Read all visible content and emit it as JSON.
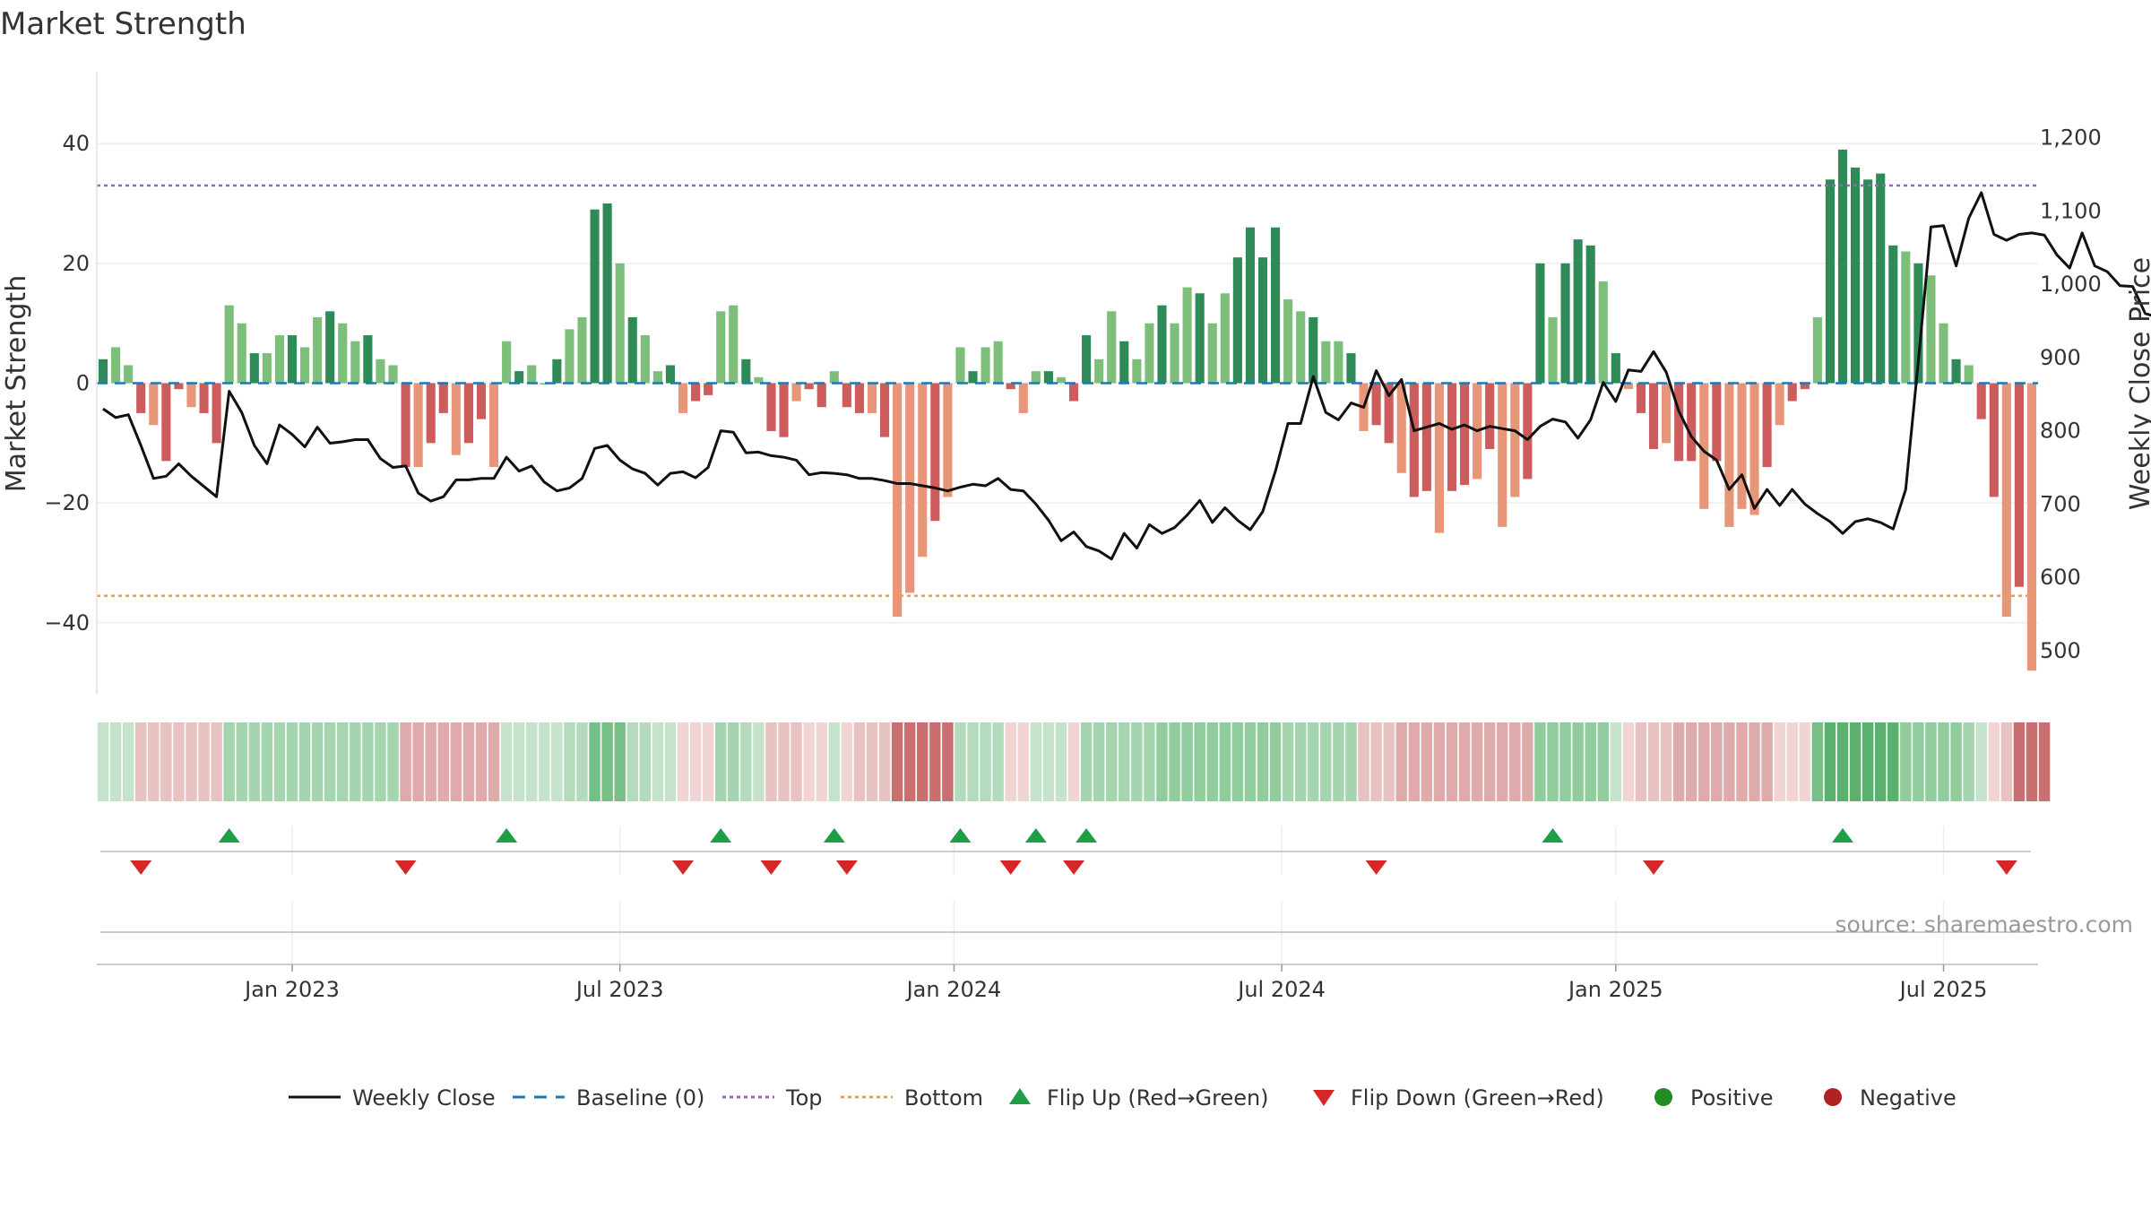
{
  "chart_data": {
    "type": "bar",
    "title": "Market Strength",
    "ylabel": "Market Strength",
    "y2label": "Weekly Close Price",
    "ylim": [
      -52,
      52
    ],
    "y2lim": [
      440,
      1290
    ],
    "yticks": [
      40,
      20,
      0,
      -20,
      -40
    ],
    "ytick_labels": [
      "40",
      "20",
      "0",
      "−20",
      "−40"
    ],
    "y2ticks": [
      1200,
      1100,
      1000,
      900,
      800,
      700,
      600,
      500
    ],
    "y2tick_labels": [
      "1,200",
      "1,100",
      "1,000",
      "900",
      "800",
      "700",
      "600",
      "500"
    ],
    "x_month_ticks": [
      {
        "label": "Jan 2023",
        "week": 15
      },
      {
        "label": "Jul 2023",
        "week": 41
      },
      {
        "label": "Jan 2024",
        "week": 67.5
      },
      {
        "label": "Jul 2024",
        "week": 93.5
      },
      {
        "label": "Jan 2025",
        "week": 120
      },
      {
        "label": "Jul 2025",
        "week": 146
      }
    ],
    "top_line": 33,
    "bottom_line": -35.5,
    "baseline": 0,
    "strength": [
      4,
      6,
      3,
      -5,
      -7,
      -13,
      -1,
      -4,
      -5,
      -10,
      13,
      10,
      5,
      5,
      8,
      8,
      6,
      11,
      12,
      10,
      7,
      8,
      4,
      3,
      -14,
      -14,
      -10,
      -5,
      -12,
      -10,
      -6,
      -14,
      7,
      2,
      3,
      0,
      4,
      9,
      11,
      29,
      30,
      20,
      11,
      8,
      2,
      3,
      -5,
      -3,
      -2,
      12,
      13,
      4,
      1,
      -8,
      -9,
      -3,
      -1,
      -4,
      2,
      -4,
      -5,
      -5,
      -9,
      -39,
      -35,
      -29,
      -23,
      -19,
      6,
      2,
      6,
      7,
      -1,
      -5,
      2,
      2,
      1,
      -3,
      8,
      4,
      12,
      7,
      4,
      10,
      13,
      10,
      16,
      15,
      10,
      15,
      21,
      26,
      21,
      26,
      14,
      12,
      11,
      7,
      7,
      5,
      -8,
      -7,
      -10,
      -15,
      -19,
      -18,
      -25,
      -18,
      -17,
      -16,
      -11,
      -24,
      -19,
      -16,
      20,
      11,
      20,
      24,
      23,
      17,
      5,
      -1,
      -5,
      -11,
      -10,
      -13,
      -13,
      -21,
      -13,
      -24,
      -21,
      -22,
      -14,
      -7,
      -3,
      -1,
      11,
      34,
      39,
      36,
      34,
      35,
      23,
      22,
      20,
      18,
      10,
      4,
      3,
      -6,
      -19,
      -39,
      -34,
      -48
    ],
    "weekly_close": [
      830,
      818,
      822,
      780,
      735,
      738,
      755,
      738,
      724,
      710,
      854,
      825,
      780,
      755,
      808,
      795,
      778,
      805,
      783,
      785,
      788,
      788,
      762,
      750,
      752,
      715,
      704,
      710,
      733,
      733,
      735,
      735,
      764,
      745,
      752,
      730,
      718,
      722,
      735,
      776,
      780,
      760,
      748,
      742,
      726,
      742,
      744,
      736,
      750,
      800,
      798,
      770,
      771,
      766,
      764,
      760,
      740,
      743,
      742,
      740,
      735,
      735,
      732,
      728,
      728,
      725,
      722,
      718,
      723,
      727,
      725,
      735,
      720,
      718,
      700,
      678,
      650,
      662,
      642,
      636,
      625,
      660,
      640,
      672,
      660,
      668,
      685,
      705,
      675,
      695,
      678,
      665,
      690,
      745,
      810,
      810,
      874,
      825,
      815,
      838,
      832,
      882,
      848,
      870,
      800,
      805,
      810,
      802,
      808,
      800,
      806,
      803,
      800,
      788,
      806,
      816,
      812,
      790,
      815,
      866,
      840,
      883,
      881,
      908,
      880,
      827,
      792,
      772,
      760,
      720,
      740,
      694,
      720,
      698,
      720,
      700,
      687,
      676,
      660,
      676,
      680,
      675,
      666,
      720,
      895,
      1078,
      1080,
      1025,
      1090,
      1125,
      1068,
      1060,
      1068,
      1070,
      1067,
      1040,
      1022,
      1070,
      1025,
      1017,
      998,
      997,
      960,
      955
    ],
    "band_colors": [
      "#c5e3cb",
      "#b4dcbc",
      "#a5d5af",
      "#91cc9d",
      "#76bf86",
      "#5bb06e",
      "#f1d5d5",
      "#e8c1c1",
      "#dfaaaa",
      "#d58e8e",
      "#c96f6f"
    ],
    "band_levels": [
      0,
      0,
      0,
      7,
      7,
      7,
      7,
      7,
      7,
      7,
      2,
      2,
      2,
      2,
      2,
      2,
      2,
      2,
      2,
      2,
      2,
      2,
      2,
      2,
      8,
      8,
      8,
      8,
      8,
      8,
      8,
      8,
      0,
      0,
      0,
      0,
      0,
      1,
      1,
      4,
      4,
      4,
      1,
      1,
      0,
      0,
      6,
      6,
      6,
      2,
      2,
      1,
      0,
      7,
      7,
      7,
      6,
      6,
      0,
      6,
      7,
      7,
      7,
      10,
      10,
      10,
      10,
      10,
      1,
      1,
      1,
      1,
      6,
      6,
      0,
      0,
      0,
      6,
      2,
      2,
      2,
      2,
      2,
      2,
      3,
      3,
      3,
      3,
      3,
      3,
      3,
      3,
      3,
      3,
      2,
      2,
      2,
      2,
      2,
      2,
      7,
      7,
      7,
      8,
      8,
      8,
      8,
      8,
      8,
      8,
      8,
      8,
      8,
      8,
      3,
      3,
      3,
      3,
      3,
      3,
      0,
      6,
      7,
      7,
      7,
      8,
      8,
      8,
      8,
      8,
      8,
      8,
      8,
      6,
      6,
      6,
      4,
      5,
      5,
      5,
      5,
      5,
      5,
      3,
      3,
      3,
      3,
      3,
      2,
      0,
      6,
      7,
      10,
      10,
      10
    ],
    "flip_up_weeks": [
      10,
      32,
      49,
      58,
      68,
      74,
      78,
      115,
      138
    ],
    "flip_down_weeks": [
      3,
      24,
      46,
      53,
      59,
      72,
      77,
      101,
      123,
      151
    ],
    "legend": [
      {
        "label": "Weekly Close",
        "kind": "line"
      },
      {
        "label": "Baseline (0)",
        "kind": "dash"
      },
      {
        "label": "Top",
        "kind": "dot-purple"
      },
      {
        "label": "Bottom",
        "kind": "dot-orange"
      },
      {
        "label": "Flip Up (Red→Green)",
        "kind": "tri-up"
      },
      {
        "label": "Flip Down (Green→Red)",
        "kind": "tri-down"
      },
      {
        "label": "Positive",
        "kind": "circle-green"
      },
      {
        "label": "Negative",
        "kind": "circle-red"
      }
    ],
    "source": "source: sharemaestro.com",
    "colors": {
      "pos_strong": "#2e8b57",
      "pos_weak": "#7dbf7a",
      "neg_strong": "#cd5c5c",
      "neg_weak": "#e8967a",
      "close_line": "#111111",
      "baseline": "#1f77b4",
      "top": "#9467bd",
      "bottom": "#e6a05a",
      "flip_up": "#1e9e46",
      "flip_down": "#d62728",
      "positive": "#228b22",
      "negative": "#b22222"
    }
  }
}
